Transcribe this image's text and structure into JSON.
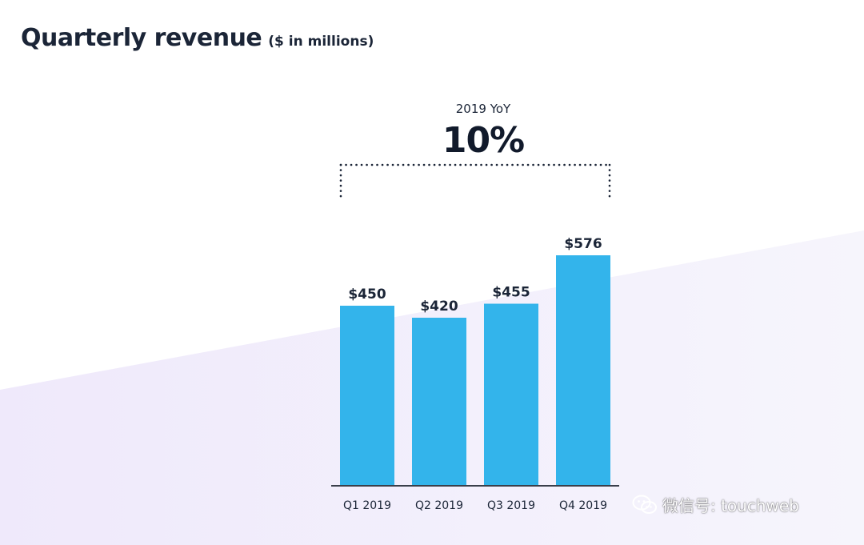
{
  "colors": {
    "bar": "#33b4eb",
    "text": "#1b2537",
    "axis": "#3a3f4a",
    "bg_band": "#f1eefa"
  },
  "chart_data": {
    "type": "bar",
    "title": "Quarterly revenue",
    "subtitle": "($ in millions)",
    "categories": [
      "Q1 2019",
      "Q2 2019",
      "Q3 2019",
      "Q4 2019"
    ],
    "values": [
      450,
      420,
      455,
      576
    ],
    "data_labels": [
      "$450",
      "$420",
      "$455",
      "$576"
    ],
    "xlabel": "",
    "ylabel": "",
    "ylim": [
      0,
      600
    ],
    "grid": false,
    "annotation": {
      "label": "2019 YoY",
      "value": "10%",
      "spans": [
        "Q1 2019",
        "Q4 2019"
      ]
    }
  },
  "watermark": {
    "icon": "wechat-icon",
    "text": "微信号: touchweb"
  }
}
